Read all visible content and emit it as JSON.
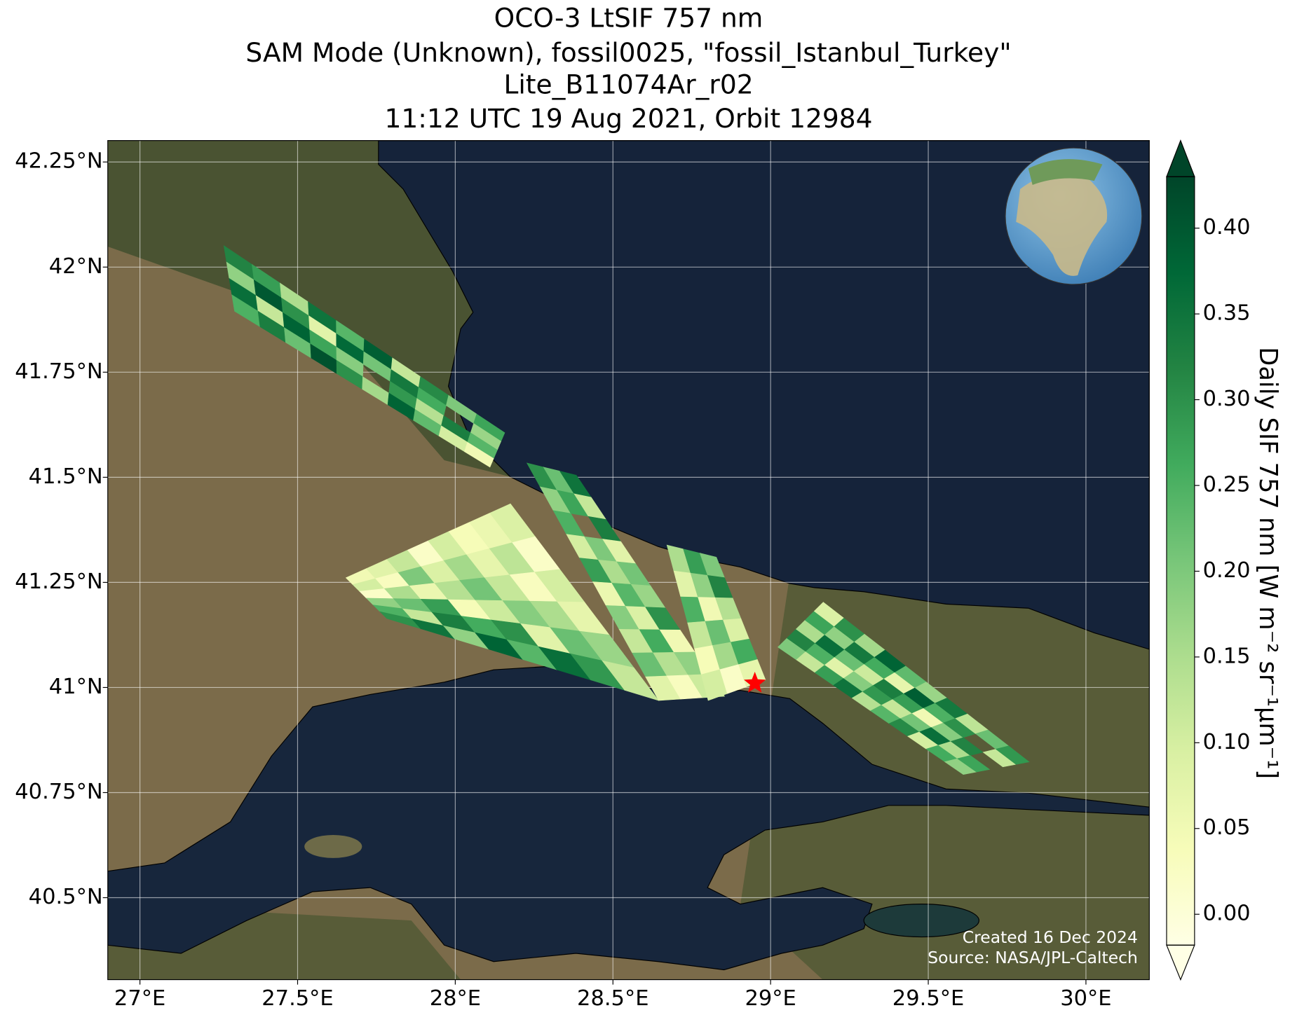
{
  "chart_data": {
    "type": "map",
    "title": [
      "OCO-3 LtSIF 757 nm",
      "SAM Mode (Unknown), fossil0025, \"fossil_Istanbul_Turkey\"",
      "Lite_B11074Ar_r02",
      "11:12 UTC 19 Aug 2021, Orbit 12984"
    ],
    "xlim": [
      26.898,
      30.201
    ],
    "ylim": [
      40.305,
      42.301
    ],
    "xticks": [
      {
        "value": 27,
        "label": "27°E"
      },
      {
        "value": 27.5,
        "label": "27.5°E"
      },
      {
        "value": 28,
        "label": "28°E"
      },
      {
        "value": 28.5,
        "label": "28.5°E"
      },
      {
        "value": 29,
        "label": "29°E"
      },
      {
        "value": 29.5,
        "label": "29.5°E"
      },
      {
        "value": 30,
        "label": "30°E"
      }
    ],
    "yticks": [
      {
        "value": 40.5,
        "label": "40.5°N"
      },
      {
        "value": 40.75,
        "label": "40.75°N"
      },
      {
        "value": 41,
        "label": "41°N"
      },
      {
        "value": 41.25,
        "label": "41.25°N"
      },
      {
        "value": 41.5,
        "label": "41.5°N"
      },
      {
        "value": 41.75,
        "label": "41.75°N"
      },
      {
        "value": 42,
        "label": "42°N"
      },
      {
        "value": 42.25,
        "label": "42.25°N"
      }
    ],
    "grid": true,
    "colorbar": {
      "label": "Daily SIF 757 nm [W m⁻² sr⁻¹μm⁻¹]",
      "clim": [
        -0.018,
        0.43
      ],
      "ticks": [
        {
          "value": 0,
          "label": "0.00"
        },
        {
          "value": 0.05,
          "label": "0.05"
        },
        {
          "value": 0.1,
          "label": "0.10"
        },
        {
          "value": 0.15,
          "label": "0.15"
        },
        {
          "value": 0.2,
          "label": "0.20"
        },
        {
          "value": 0.25,
          "label": "0.25"
        },
        {
          "value": 0.3,
          "label": "0.30"
        },
        {
          "value": 0.35,
          "label": "0.35"
        },
        {
          "value": 0.4,
          "label": "0.40"
        }
      ],
      "colormap": [
        "#ffffe5",
        "#f7fcb9",
        "#d9f0a3",
        "#addd8e",
        "#78c679",
        "#41ab5d",
        "#238443",
        "#006837",
        "#004529"
      ]
    },
    "swaths": [
      {
        "corners": [
          [
            27.266,
            42.051
          ],
          [
            27.3,
            41.895
          ],
          [
            28.11,
            41.524
          ],
          [
            28.157,
            41.606
          ]
        ],
        "values": [
          [
            0.32,
            0.18,
            0.36,
            0.25
          ],
          [
            0.28,
            0.4,
            0.12,
            0.33
          ],
          [
            0.15,
            0.3,
            0.38,
            0.22
          ],
          [
            0.35,
            0.08,
            0.27,
            0.41
          ],
          [
            0.24,
            0.37,
            0.19,
            0.3
          ],
          [
            0.39,
            0.21,
            null,
            0.16
          ],
          [
            0.12,
            0.34,
            0.29,
            0.38
          ],
          [
            0.31,
            0.26,
            0.14,
            0.23
          ],
          [
            0.2,
            null,
            0.33,
            0.1
          ],
          [
            0.27,
            0.17,
            0.24,
            0.05
          ]
        ]
      },
      {
        "corners": [
          [
            27.653,
            41.261
          ],
          [
            27.783,
            41.164
          ],
          [
            28.645,
            40.969
          ],
          [
            28.175,
            41.437
          ]
        ],
        "values": [
          [
            0.05,
            0.1,
            0.02,
            0.18,
            0.25,
            0.3
          ],
          [
            0.08,
            0.03,
            0.15,
            0.22,
            0.12,
            0.35
          ],
          [
            0.12,
            0.2,
            0.06,
            0.28,
            0.33,
            0.18
          ],
          [
            0.02,
            0.09,
            0.14,
            0.04,
            0.26,
            0.38
          ],
          [
            0.1,
            0.16,
            0.21,
            0.11,
            0.3,
            0.24
          ],
          [
            0.04,
            0.07,
            0.12,
            0.19,
            0.08,
            0.36
          ],
          [
            0.06,
            0.13,
            0.03,
            0.15,
            0.22,
            0.29
          ],
          [
            0.09,
            0.02,
            0.1,
            0.07,
            0.17,
            0.12
          ]
        ]
      },
      {
        "corners": [
          [
            28.227,
            41.534
          ],
          [
            28.384,
            41.505
          ],
          [
            28.854,
            40.979
          ],
          [
            28.645,
            40.969
          ]
        ],
        "values": [
          [
            0.3,
            0.22,
            0.35
          ],
          [
            0.18,
            0.27,
            0.12
          ],
          [
            0.25,
            null,
            0.33
          ],
          [
            0.1,
            0.2,
            0.08
          ],
          [
            0.28,
            0.15,
            0.21
          ],
          [
            0.06,
            0.24,
            0.17
          ],
          [
            0.19,
            0.09,
            0.3
          ],
          [
            0.12,
            0.26,
            0.05
          ],
          [
            0.22,
            0.14,
            0.18
          ],
          [
            0.08,
            0.03,
            0.11
          ]
        ]
      },
      {
        "corners": [
          [
            29.023,
            41.096
          ],
          [
            29.167,
            41.203
          ],
          [
            29.82,
            40.823
          ],
          [
            29.611,
            40.793
          ]
        ],
        "values": [
          [
            0.2,
            0.32,
            0.15,
            0.27,
            0.09
          ],
          [
            0.12,
            0.25,
            0.36,
            0.18,
            0.3
          ],
          [
            0.28,
            0.08,
            0.22,
            0.34,
            0.16
          ],
          [
            0.35,
            0.19,
            0.11,
            0.26,
            0.38
          ],
          [
            0.14,
            0.29,
            0.33,
            0.07,
            0.23
          ],
          [
            0.24,
            0.12,
            0.28,
            0.39,
            0.17
          ],
          [
            0.31,
            0.21,
            0.05,
            0.25,
            0.34
          ],
          [
            0.1,
            0.36,
            0.19,
            0.3,
            0.13
          ],
          [
            0.26,
            0.15,
            0.32,
            null,
            0.22
          ],
          [
            0.18,
            0.27,
            null,
            0.12,
            0.29
          ]
        ]
      },
      {
        "corners": [
          [
            28.671,
            41.339
          ],
          [
            28.828,
            41.31
          ],
          [
            28.984,
            41.018
          ],
          [
            28.802,
            40.969
          ]
        ],
        "values": [
          [
            0.15,
            0.28,
            0.2
          ],
          [
            0.08,
            0.18,
            0.32
          ],
          [
            0.25,
            0.05,
            0.14
          ],
          [
            0.12,
            0.22,
            0.09
          ],
          [
            0.04,
            0.16,
            0.26
          ],
          [
            0.1,
            0.02,
            0.07
          ]
        ]
      }
    ],
    "target": {
      "lon": 28.95,
      "lat": 41.01,
      "color": "#ff0000"
    },
    "annotations": [
      "Created 16 Dec 2024",
      "Source: NASA/JPL-Caltech"
    ]
  }
}
